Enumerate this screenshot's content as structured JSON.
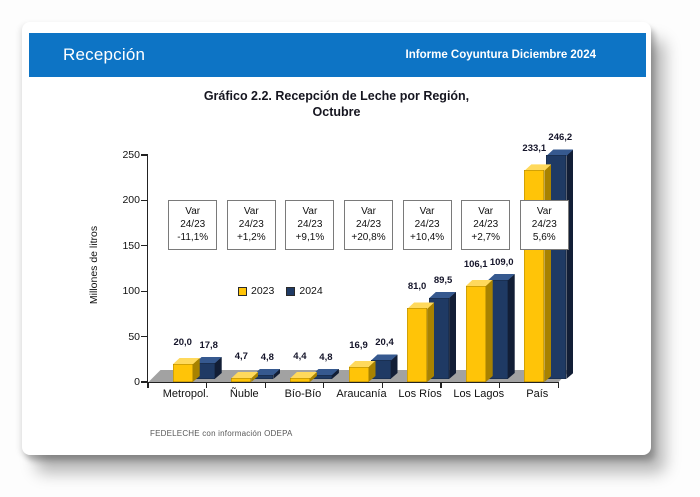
{
  "page": {
    "header": {
      "title": "Recepción",
      "right_title": "Informe Coyuntura Diciembre 2024"
    },
    "footer": {
      "source": "FEDELECHE con información ODEPA"
    }
  },
  "chart_data": {
    "type": "bar",
    "style": "3d-clustered",
    "title": "Gráfico 2.2. Recepción de Leche por Región,",
    "subtitle": "Octubre",
    "xlabel": "",
    "ylabel": "Millones de litros",
    "ylim": [
      0,
      250
    ],
    "yticks": [
      0,
      50,
      100,
      150,
      200,
      250
    ],
    "grid": false,
    "legend_position": "center-left",
    "categories": [
      "Metropol.",
      "Ñuble",
      "Bío-Bío",
      "Araucanía",
      "Los Ríos",
      "Los Lagos",
      "País"
    ],
    "series": [
      {
        "name": "2023",
        "color": "#FFC408",
        "values": [
          20.0,
          4.7,
          4.4,
          16.9,
          81.0,
          106.1,
          233.1
        ],
        "labels": [
          "20,0",
          "4,7",
          "4,4",
          "16,9",
          "81,0",
          "106,1",
          "233,1"
        ]
      },
      {
        "name": "2024",
        "color": "#1F3A64",
        "values": [
          17.8,
          4.8,
          4.8,
          20.4,
          89.5,
          109.0,
          246.2
        ],
        "labels": [
          "17,8",
          "4,8",
          "4,8",
          "20,4",
          "89,5",
          "109,0",
          "246,2"
        ]
      }
    ],
    "variation_boxes": {
      "line1": "Var",
      "line2": "24/23",
      "values": [
        "-11,1%",
        "+1,2%",
        "+9,1%",
        "+20,8%",
        "+10,4%",
        "+2,7%",
        "5,6%"
      ]
    }
  },
  "colors": {
    "header_blue": "#0d74c5",
    "series_2023_front": "#FFC408",
    "series_2023_top": "#FFD95C",
    "series_2023_side": "#A88200",
    "series_2024_front": "#1F3A64",
    "series_2024_top": "#36598F",
    "series_2024_side": "#121E36",
    "floor_gray": "#a2a2a2",
    "box_border": "#7a7a7a"
  }
}
